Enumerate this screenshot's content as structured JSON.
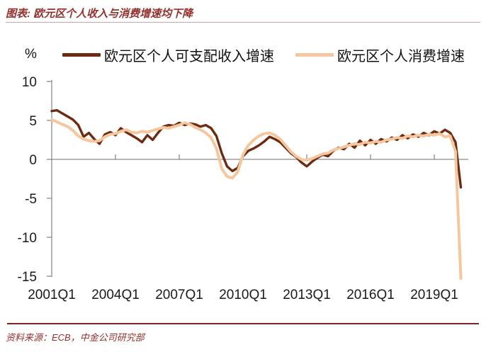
{
  "header": {
    "title": "图表: 欧元区个人收入与消费增速均下降"
  },
  "footer": {
    "source": "资料来源：ECB，中金公司研究部"
  },
  "chart_data": {
    "type": "line",
    "title": "图表: 欧元区个人收入与消费增速均下降",
    "y_unit_label": "%",
    "ylim": [
      -15,
      10
    ],
    "y_ticks": [
      10,
      5,
      0,
      -5,
      -10,
      -15
    ],
    "grid": false,
    "legend_position": "top",
    "x_start": "2001Q1",
    "x_end": "2020Q2",
    "x_frequency": "quarterly",
    "x_ticks": [
      {
        "label": "2001Q1",
        "q": 0
      },
      {
        "label": "2004Q1",
        "q": 12
      },
      {
        "label": "2007Q1",
        "q": 24
      },
      {
        "label": "2010Q1",
        "q": 36
      },
      {
        "label": "2013Q1",
        "q": 48
      },
      {
        "label": "2016Q1",
        "q": 60
      },
      {
        "label": "2019Q1",
        "q": 72
      }
    ],
    "axis_color": "#8C8C8C",
    "series": [
      {
        "name": "欧元区个人可支配收入增速",
        "color": "#6E2A10",
        "stroke_width": 3.4,
        "values": [
          6.2,
          6.3,
          5.9,
          5.5,
          5.1,
          4.4,
          2.9,
          3.4,
          2.6,
          2.0,
          3.2,
          3.5,
          3.1,
          4.0,
          3.5,
          3.1,
          2.7,
          2.2,
          3.1,
          2.5,
          3.4,
          4.2,
          4.4,
          4.3,
          4.7,
          4.4,
          4.6,
          4.5,
          4.2,
          4.4,
          4.0,
          3.0,
          0.8,
          -0.9,
          -1.5,
          -1.1,
          0.4,
          1.1,
          1.4,
          1.8,
          2.3,
          2.9,
          2.6,
          2.2,
          1.5,
          0.8,
          0.3,
          -0.4,
          -0.9,
          -0.3,
          0.2,
          0.6,
          0.4,
          1.1,
          1.5,
          1.3,
          2.0,
          1.5,
          2.4,
          1.8,
          2.5,
          2.0,
          2.6,
          2.3,
          2.8,
          2.5,
          3.1,
          2.7,
          3.2,
          2.9,
          3.4,
          3.1,
          3.6,
          3.3,
          3.8,
          3.4,
          2.2,
          -3.6
        ]
      },
      {
        "name": "欧元区个人消费增速",
        "color": "#F4C79E",
        "stroke_width": 4.0,
        "values": [
          5.1,
          4.8,
          4.5,
          4.2,
          3.7,
          3.0,
          2.6,
          2.4,
          2.3,
          2.4,
          2.9,
          3.2,
          3.3,
          3.6,
          3.8,
          3.5,
          3.4,
          3.6,
          3.5,
          3.7,
          3.9,
          4.1,
          4.0,
          4.2,
          4.4,
          4.7,
          4.5,
          4.1,
          3.8,
          3.4,
          2.8,
          1.4,
          -1.2,
          -2.2,
          -2.4,
          -1.6,
          0.6,
          1.8,
          2.5,
          3.0,
          3.3,
          3.4,
          3.1,
          2.6,
          1.8,
          1.0,
          0.4,
          0.0,
          -0.1,
          0.1,
          0.4,
          0.7,
          0.8,
          1.2,
          1.4,
          1.6,
          1.8,
          2.0,
          1.9,
          2.2,
          2.1,
          2.3,
          2.2,
          2.5,
          2.6,
          2.8,
          2.7,
          3.0,
          2.9,
          3.1,
          3.0,
          3.2,
          3.1,
          3.3,
          2.9,
          3.0,
          1.0,
          -15.3
        ]
      }
    ]
  }
}
